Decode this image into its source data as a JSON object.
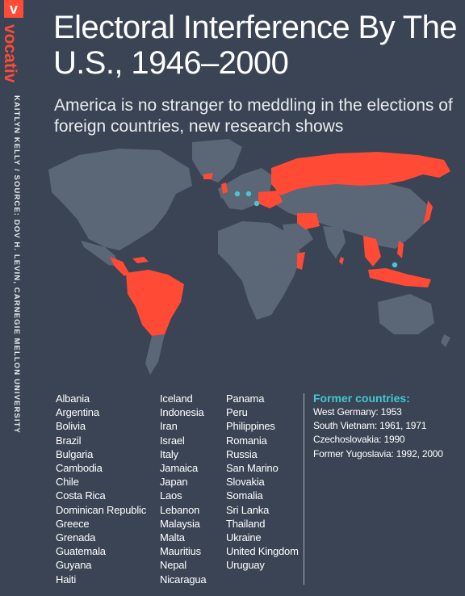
{
  "brand": {
    "logo_letter": "v",
    "name": "vocativ"
  },
  "credit": "KAITLYN KELLY / SOURCE: DOV H. LEVIN, CARNEGIE MELLON UNIVERSITY",
  "title": "Electoral Interference By The U.S., 1946–2000",
  "subtitle": "America is no stranger to meddling in the elections of foreign countries, new research shows",
  "colors": {
    "background": "#3a4454",
    "land": "#5b6677",
    "highlight": "#ff4b36",
    "former_marker": "#45c6d3",
    "accent": "#ff4b36"
  },
  "countries": {
    "col1": [
      "Albania",
      "Argentina",
      "Bolivia",
      "Brazil",
      "Bulgaria",
      "Cambodia",
      "Chile",
      "Costa Rica",
      "Dominican Republic",
      "Greece",
      "Grenada",
      "Guatemala",
      "Guyana",
      "Haiti"
    ],
    "col2": [
      "Iceland",
      "Indonesia",
      "Iran",
      "Israel",
      "Italy",
      "Jamaica",
      "Japan",
      "Laos",
      "Lebanon",
      "Malaysia",
      "Malta",
      "Mauritius",
      "Nepal",
      "Nicaragua"
    ],
    "col3": [
      "Panama",
      "Peru",
      "Philippines",
      "Romania",
      "Russia",
      "San Marino",
      "Slovakia",
      "Somalia",
      "Sri Lanka",
      "Thailand",
      "Ukraine",
      "United Kingdom",
      "Uruguay"
    ]
  },
  "former": {
    "heading": "Former countries:",
    "items": [
      "West Germany: 1953",
      "South Vietnam: 1961, 1971",
      "Czechoslovakia: 1990",
      "Former Yugoslavia: 1992, 2000"
    ]
  }
}
